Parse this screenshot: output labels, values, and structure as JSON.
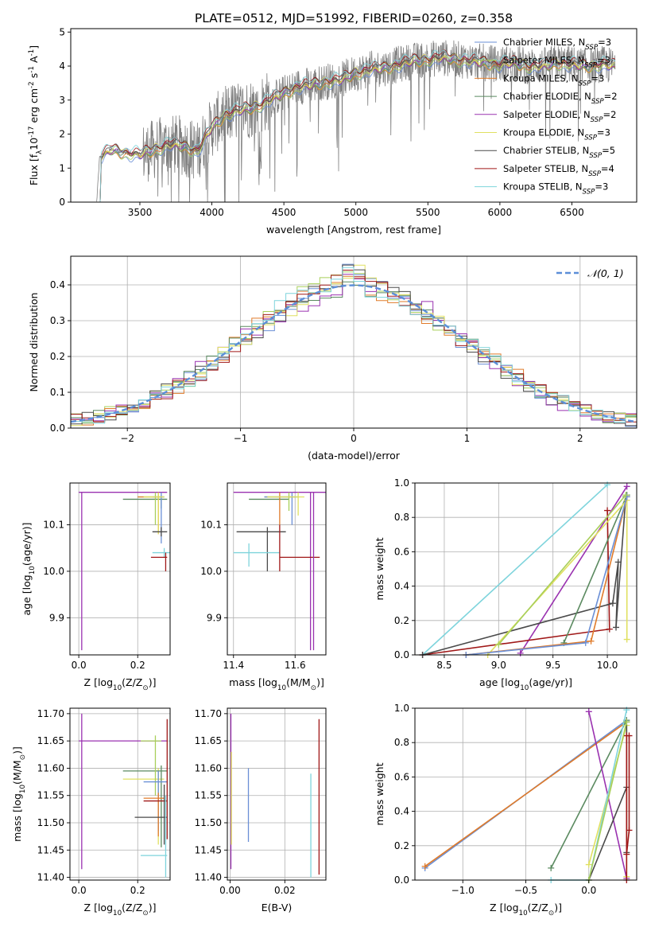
{
  "figure_title": "PLATE=0512, MJD=51992, FIBERID=0260, z=0.358",
  "colors": {
    "Chabrier MILES": "#6a8fd6",
    "Salpeter MILES": "#a8cf5a",
    "Kroupa MILES": "#e07b2a",
    "Chabrier ELODIE": "#5b8a60",
    "Salpeter ELODIE": "#9a32b0",
    "Kroupa ELODIE": "#e0e060",
    "Chabrier STELIB": "#4a4a4a",
    "Salpeter STELIB": "#a01818",
    "Kroupa STELIB": "#7ed4dc",
    "data": "#808080",
    "normal": "#5b8ed8",
    "grid": "#b0b0b0"
  },
  "chart_data": [
    {
      "id": "spectrum",
      "type": "line",
      "xlabel": "wavelength [Angstrom, rest frame]",
      "ylabel": "Flux [f$_\\lambda$10$^{-17}$ erg cm$^{-2}$ s$^{-1}$ A$^{-1}$]",
      "xlim": [
        3020,
        6950
      ],
      "ylim": [
        0,
        5.1
      ],
      "xticks": [
        3500,
        4000,
        4500,
        5000,
        5500,
        6000,
        6500
      ],
      "yticks": [
        0,
        1,
        2,
        3,
        4,
        5
      ],
      "grid": false,
      "legend_position": "top-right",
      "legend": [
        {
          "model": "Chabrier MILES",
          "text": "Chabrier MILES, N",
          "n": "3"
        },
        {
          "model": "Salpeter MILES",
          "text": "Salpeter MILES, N",
          "n": "3"
        },
        {
          "model": "Kroupa MILES",
          "text": "Kroupa MILES, N",
          "n": "3"
        },
        {
          "model": "Chabrier ELODIE",
          "text": "Chabrier ELODIE, N",
          "n": "2"
        },
        {
          "model": "Salpeter ELODIE",
          "text": "Salpeter ELODIE, N",
          "n": "2"
        },
        {
          "model": "Kroupa ELODIE",
          "text": "Kroupa ELODIE, N",
          "n": "3"
        },
        {
          "model": "Chabrier STELIB",
          "text": "Chabrier STELIB, N",
          "n": "5"
        },
        {
          "model": "Salpeter STELIB",
          "text": "Salpeter STELIB, N",
          "n": "4"
        },
        {
          "model": "Kroupa STELIB",
          "text": "Kroupa STELIB, N",
          "n": "3"
        }
      ],
      "legend_sub": "SSP",
      "continuum": {
        "x": [
          3200,
          3220,
          3300,
          3400,
          3500,
          3600,
          3700,
          3800,
          3900,
          4000,
          4100,
          4200,
          4300,
          4400,
          4500,
          4600,
          4700,
          4800,
          4900,
          5000,
          5100,
          5200,
          5300,
          5400,
          5500,
          5600,
          5700,
          5800,
          5900,
          6000,
          6100,
          6200,
          6300,
          6400,
          6500,
          6600,
          6700,
          6800
        ],
        "y": [
          0,
          1.3,
          1.55,
          1.45,
          1.4,
          1.55,
          1.7,
          1.65,
          1.5,
          2.2,
          2.6,
          2.7,
          2.8,
          3.0,
          3.2,
          3.4,
          3.45,
          3.55,
          3.6,
          3.8,
          3.9,
          3.95,
          4.05,
          4.15,
          4.2,
          4.25,
          4.2,
          4.15,
          4.1,
          4.05,
          4.1,
          4.0,
          4.0,
          4.1,
          4.05,
          4.0,
          4.05,
          4.0
        ]
      }
    },
    {
      "id": "residuals",
      "type": "step",
      "xlabel": "(data-model)/error",
      "ylabel": "Normed distribution",
      "xlim": [
        -2.5,
        2.5
      ],
      "ylim": [
        0,
        0.48
      ],
      "xticks": [
        -2,
        -1,
        0,
        1,
        2
      ],
      "yticks": [
        0.0,
        0.1,
        0.2,
        0.3,
        0.4
      ],
      "grid": true,
      "legend_position": "top-right",
      "legend_label": "𝒩(0, 1)",
      "normal": {
        "mean": 0,
        "sigma": 1
      },
      "bin_width": 0.1
    },
    {
      "id": "age_vs_Z",
      "type": "errorbar",
      "xlabel": "Z [log$_{10}$(Z/Z$_\\odot$)]",
      "ylabel": "age  [log$_{10}$(age/yr)]",
      "xlim": [
        -0.03,
        0.31
      ],
      "ylim": [
        9.82,
        10.19
      ],
      "xticks": [
        0.0,
        0.2
      ],
      "yticks": [
        9.9,
        10.0,
        10.1
      ],
      "grid": true,
      "points": [
        {
          "model": "Salpeter ELODIE",
          "x": 0.3,
          "xerr": [
            0.3,
            0.0
          ],
          "y": 10.17,
          "yerr": [
            0.0,
            0.0
          ]
        },
        {
          "model": "Salpeter ELODIE",
          "x": 0.01,
          "xerr": [
            0,
            0
          ],
          "y": 10.17,
          "yerr": [
            0.34,
            0.0
          ]
        },
        {
          "model": "Chabrier ELODIE",
          "x": 0.28,
          "xerr": [
            0.13,
            0.02
          ],
          "y": 10.155,
          "yerr": [
            0.02,
            0.0
          ]
        },
        {
          "model": "Salpeter MILES",
          "x": 0.26,
          "xerr": [
            0.06,
            0.03
          ],
          "y": 10.16,
          "yerr": [
            0.06,
            0.01
          ]
        },
        {
          "model": "Kroupa MILES",
          "x": 0.27,
          "xerr": [
            0.07,
            0.02
          ],
          "y": 10.16,
          "yerr": [
            0.08,
            0.01
          ]
        },
        {
          "model": "Chabrier MILES",
          "x": 0.28,
          "xerr": [
            0.03,
            0.01
          ],
          "y": 10.16,
          "yerr": [
            0.1,
            0.01
          ]
        },
        {
          "model": "Kroupa ELODIE",
          "x": 0.27,
          "xerr": [
            0.05,
            0.02
          ],
          "y": 10.16,
          "yerr": [
            0.08,
            0.01
          ]
        },
        {
          "model": "Chabrier STELIB",
          "x": 0.28,
          "xerr": [
            0.03,
            0.02
          ],
          "y": 10.085,
          "yerr": [
            0.01,
            0.01
          ]
        },
        {
          "model": "Kroupa STELIB",
          "x": 0.29,
          "xerr": [
            0.04,
            0.02
          ],
          "y": 10.04,
          "yerr": [
            0.01,
            0.01
          ]
        },
        {
          "model": "Salpeter STELIB",
          "x": 0.295,
          "xerr": [
            0.05,
            0.005
          ],
          "y": 10.03,
          "yerr": [
            0.03,
            0.01
          ]
        }
      ]
    },
    {
      "id": "age_vs_mass",
      "type": "errorbar",
      "xlabel": "mass [log$_{10}$(M/M$_\\odot$)]",
      "ylabel": "",
      "xlim": [
        11.38,
        11.7
      ],
      "ylim": [
        9.82,
        10.19
      ],
      "xticks": [
        11.4,
        11.6
      ],
      "yticks": [
        9.9,
        10.0,
        10.1
      ],
      "grid": true,
      "points": [
        {
          "model": "Salpeter ELODIE",
          "x": 11.65,
          "xerr": [
            0.25,
            0.05
          ],
          "y": 10.17,
          "yerr": [
            0.34,
            0.0
          ]
        },
        {
          "model": "Chabrier ELODIE",
          "x": 11.5,
          "xerr": [
            0.05,
            0.08
          ],
          "y": 10.155,
          "yerr": [
            0.0,
            0.0
          ]
        },
        {
          "model": "Kroupa MILES",
          "x": 11.55,
          "xerr": [
            0.05,
            0.05
          ],
          "y": 10.16,
          "yerr": [
            0.06,
            0.01
          ]
        },
        {
          "model": "Salpeter MILES",
          "x": 11.58,
          "xerr": [
            0.08,
            0.03
          ],
          "y": 10.16,
          "yerr": [
            0.03,
            0.01
          ]
        },
        {
          "model": "Chabrier MILES",
          "x": 11.59,
          "xerr": [
            0.09,
            0.02
          ],
          "y": 10.16,
          "yerr": [
            0.06,
            0.01
          ]
        },
        {
          "model": "Kroupa ELODIE",
          "x": 11.61,
          "xerr": [
            0.1,
            0.02
          ],
          "y": 10.16,
          "yerr": [
            0.04,
            0.01
          ]
        },
        {
          "model": "Chabrier STELIB",
          "x": 11.51,
          "xerr": [
            0.1,
            0.06
          ],
          "y": 10.085,
          "yerr": [
            0.085,
            0.01
          ]
        },
        {
          "model": "Kroupa STELIB",
          "x": 11.45,
          "xerr": [
            0.05,
            0.1
          ],
          "y": 10.04,
          "yerr": [
            0.03,
            0.02
          ]
        },
        {
          "model": "Salpeter STELIB",
          "x": 11.55,
          "xerr": [
            0.0,
            0.13
          ],
          "y": 10.03,
          "yerr": [
            0.03,
            0.07
          ]
        },
        {
          "model": "Salpeter ELODIE",
          "x": 11.66,
          "xerr": [
            0.0,
            0.0
          ],
          "y": 10.17,
          "yerr": [
            0.34,
            0.0
          ]
        }
      ]
    },
    {
      "id": "weight_vs_age",
      "type": "line",
      "xlabel": "age  [log$_{10}$(age/yr)]",
      "ylabel": "mass weight",
      "xlim": [
        8.23,
        10.27
      ],
      "ylim": [
        0,
        1.0
      ],
      "xticks": [
        8.5,
        9.0,
        9.5,
        10.0
      ],
      "yticks": [
        0.0,
        0.2,
        0.4,
        0.6,
        0.8,
        1.0
      ],
      "grid": true,
      "series": [
        {
          "model": "Kroupa STELIB",
          "x": [
            8.3,
            10.0
          ],
          "y": [
            0.0,
            0.99
          ]
        },
        {
          "model": "Salpeter ELODIE",
          "x": [
            9.2,
            10.18
          ],
          "y": [
            0.01,
            0.98
          ]
        },
        {
          "model": "Salpeter STELIB",
          "x": [
            8.3,
            10.02,
            10.0
          ],
          "y": [
            0.0,
            0.15,
            0.84
          ]
        },
        {
          "model": "Chabrier STELIB",
          "x": [
            8.3,
            10.05,
            10.1,
            10.08,
            10.17
          ],
          "y": [
            0.0,
            0.3,
            0.54,
            0.16,
            0.92
          ]
        },
        {
          "model": "Chabrier ELODIE",
          "x": [
            9.6,
            10.18
          ],
          "y": [
            0.07,
            0.93
          ]
        },
        {
          "model": "Kroupa ELODIE",
          "x": [
            8.9,
            10.18,
            10.18
          ],
          "y": [
            0.0,
            0.9,
            0.09
          ]
        },
        {
          "model": "Kroupa MILES",
          "x": [
            8.7,
            9.85,
            10.18
          ],
          "y": [
            0.0,
            0.08,
            0.92
          ]
        },
        {
          "model": "Chabrier MILES",
          "x": [
            8.7,
            9.8,
            10.18
          ],
          "y": [
            0.0,
            0.07,
            0.92
          ]
        },
        {
          "model": "Salpeter MILES",
          "x": [
            9.0,
            10.17
          ],
          "y": [
            0.06,
            0.93
          ]
        }
      ]
    },
    {
      "id": "mass_vs_Z",
      "type": "errorbar",
      "xlabel": "Z [log$_{10}$(Z/Z$_\\odot$)]",
      "ylabel": "mass [log$_{10}$(M/M$_\\odot$)]",
      "xlim": [
        -0.03,
        0.31
      ],
      "ylim": [
        11.395,
        11.71
      ],
      "xticks": [
        0.0,
        0.2
      ],
      "yticks": [
        11.4,
        11.45,
        11.5,
        11.55,
        11.6,
        11.65,
        11.7
      ],
      "grid": true,
      "points": [
        {
          "model": "Salpeter ELODIE",
          "x": 0.01,
          "xerr": [
            0.01,
            0.29
          ],
          "y": 11.65,
          "yerr": [
            0.235,
            0.05
          ]
        },
        {
          "model": "Kroupa ELODIE",
          "x": 0.27,
          "xerr": [
            0.12,
            0.02
          ],
          "y": 11.58,
          "yerr": [
            0.12,
            0.02
          ]
        },
        {
          "model": "Chabrier ELODIE",
          "x": 0.28,
          "xerr": [
            0.13,
            0.02
          ],
          "y": 11.595,
          "yerr": [
            0.14,
            0.01
          ]
        },
        {
          "model": "Salpeter MILES",
          "x": 0.26,
          "xerr": [
            0.05,
            0.02
          ],
          "y": 11.65,
          "yerr": [
            0.1,
            0.01
          ]
        },
        {
          "model": "Chabrier MILES",
          "x": 0.27,
          "xerr": [
            0.05,
            0.03
          ],
          "y": 11.575,
          "yerr": [
            0.09,
            0.02
          ]
        },
        {
          "model": "Kroupa MILES",
          "x": 0.27,
          "xerr": [
            0.05,
            0.02
          ],
          "y": 11.545,
          "yerr": [
            0.07,
            0.01
          ]
        },
        {
          "model": "Salpeter STELIB",
          "x": 0.3,
          "xerr": [
            0.08,
            0.0
          ],
          "y": 11.54,
          "yerr": [
            0.07,
            0.15
          ]
        },
        {
          "model": "Chabrier STELIB",
          "x": 0.29,
          "xerr": [
            0.1,
            0.01
          ],
          "y": 11.51,
          "yerr": [
            0.05,
            0.06
          ]
        },
        {
          "model": "Kroupa STELIB",
          "x": 0.295,
          "xerr": [
            0.085,
            0.005
          ],
          "y": 11.44,
          "yerr": [
            0.04,
            0.11
          ]
        }
      ]
    },
    {
      "id": "mass_vs_ebv",
      "type": "errorbar",
      "xlabel": "E(B-V)",
      "ylabel": "",
      "xlim": [
        -0.001,
        0.035
      ],
      "ylim": [
        11.395,
        11.71
      ],
      "xticks": [
        0.0,
        0.02
      ],
      "yticks": [
        11.4,
        11.45,
        11.5,
        11.55,
        11.6,
        11.65,
        11.7
      ],
      "grid": true,
      "points": [
        {
          "model": "Salpeter ELODIE",
          "x": 0.0003,
          "xerr": [
            0,
            0
          ],
          "y": 11.6,
          "yerr": [
            0.185,
            0.1
          ]
        },
        {
          "model": "Kroupa ELODIE",
          "x": 0.0005,
          "xerr": [
            0,
            0
          ],
          "y": 11.58,
          "yerr": [
            0.12,
            0.05
          ]
        },
        {
          "model": "Chabrier MILES",
          "x": 0.0067,
          "xerr": [
            0,
            0
          ],
          "y": 11.53,
          "yerr": [
            0.065,
            0.07
          ]
        },
        {
          "model": "Kroupa STELIB",
          "x": 0.0295,
          "xerr": [
            0,
            0
          ],
          "y": 11.5,
          "yerr": [
            0.1,
            0.09
          ]
        },
        {
          "model": "Salpeter STELIB",
          "x": 0.0325,
          "xerr": [
            0,
            0
          ],
          "y": 11.55,
          "yerr": [
            0.145,
            0.14
          ]
        }
      ]
    },
    {
      "id": "weight_vs_Z",
      "type": "line",
      "xlabel": "Z [log$_{10}$(Z/Z$_\\odot$)]",
      "ylabel": "mass weight",
      "xlim": [
        -1.38,
        0.38
      ],
      "ylim": [
        0,
        1.0
      ],
      "xticks": [
        -1.0,
        -0.5,
        0.0
      ],
      "yticks": [
        0.0,
        0.2,
        0.4,
        0.6,
        0.8,
        1.0
      ],
      "grid": true,
      "series": [
        {
          "model": "Chabrier MILES",
          "x": [
            -1.3,
            0.3
          ],
          "y": [
            0.07,
            0.93
          ]
        },
        {
          "model": "Kroupa MILES",
          "x": [
            -1.3,
            0.3
          ],
          "y": [
            0.08,
            0.92
          ]
        },
        {
          "model": "Chabrier ELODIE",
          "x": [
            -0.3,
            0.3
          ],
          "y": [
            0.07,
            0.93
          ]
        },
        {
          "model": "Salpeter ELODIE",
          "x": [
            0.0,
            0.3
          ],
          "y": [
            0.98,
            0.01
          ]
        },
        {
          "model": "Kroupa ELODIE",
          "x": [
            0.0,
            0.3,
            0.3
          ],
          "y": [
            0.09,
            0.9,
            0.02
          ]
        },
        {
          "model": "Kroupa STELIB",
          "x": [
            -0.3,
            0.0,
            0.3
          ],
          "y": [
            0.0,
            0.0,
            0.99
          ]
        },
        {
          "model": "Chabrier STELIB",
          "x": [
            0.0,
            0.3,
            0.3,
            0.3
          ],
          "y": [
            0.0,
            0.54,
            0.92,
            0.16
          ]
        },
        {
          "model": "Salpeter STELIB",
          "x": [
            0.3,
            0.3,
            0.3,
            0.32,
            0.32
          ],
          "y": [
            0.0,
            0.84,
            0.15,
            0.29,
            0.84
          ]
        },
        {
          "model": "Salpeter MILES",
          "x": [
            0.0,
            0.3
          ],
          "y": [
            0.0,
            0.92
          ]
        }
      ]
    }
  ]
}
